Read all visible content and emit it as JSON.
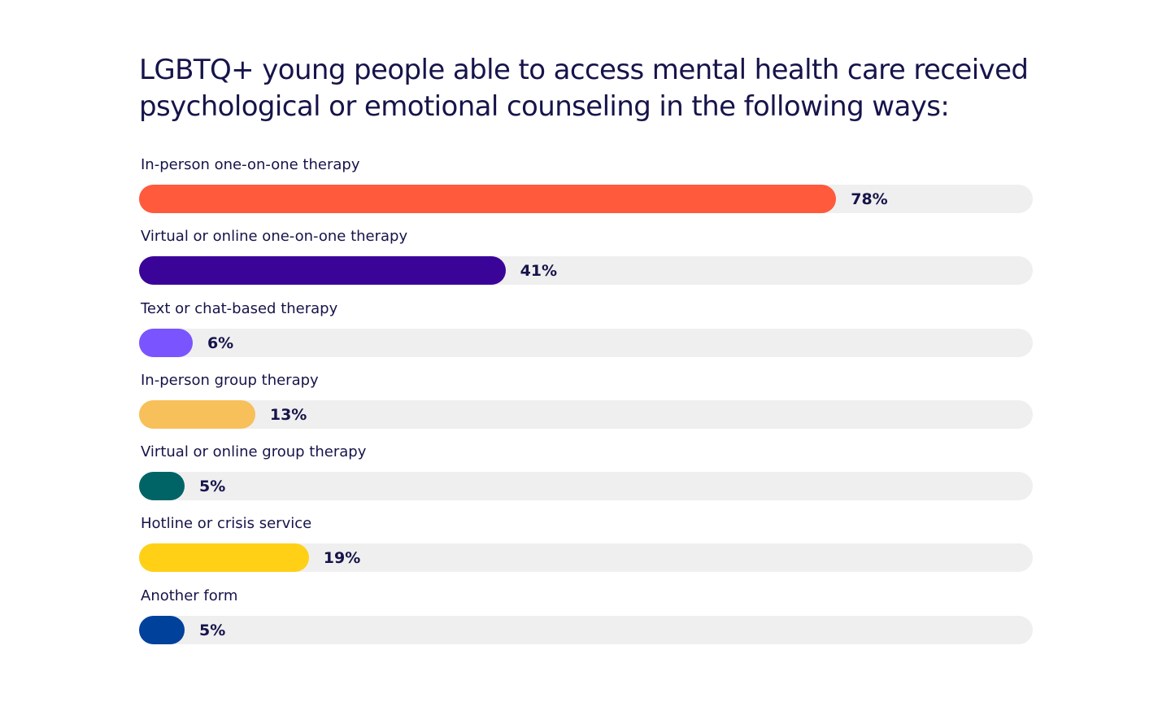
{
  "chart_data": {
    "type": "bar",
    "orientation": "horizontal",
    "title": "LGBTQ+ young people able to access mental health care received psychological or emotional counseling in the following ways:",
    "xlim": [
      0,
      100
    ],
    "value_suffix": "%",
    "grid": false,
    "categories": [
      "In-person one-on-one therapy",
      "Virtual or online one-on-one therapy",
      "Text or chat-based therapy",
      "In-person group therapy",
      "Virtual or online group therapy",
      "Hotline or crisis service",
      "Another form"
    ],
    "values": [
      78,
      41,
      6,
      13,
      5,
      19,
      5
    ],
    "value_labels": [
      "78%",
      "41%",
      "6%",
      "13%",
      "5%",
      "19%",
      "5%"
    ],
    "colors": [
      "#ff5a3c",
      "#3b0499",
      "#7a55ff",
      "#f8c05a",
      "#006466",
      "#ffd016",
      "#00419c"
    ],
    "track_color": "#efefef"
  }
}
